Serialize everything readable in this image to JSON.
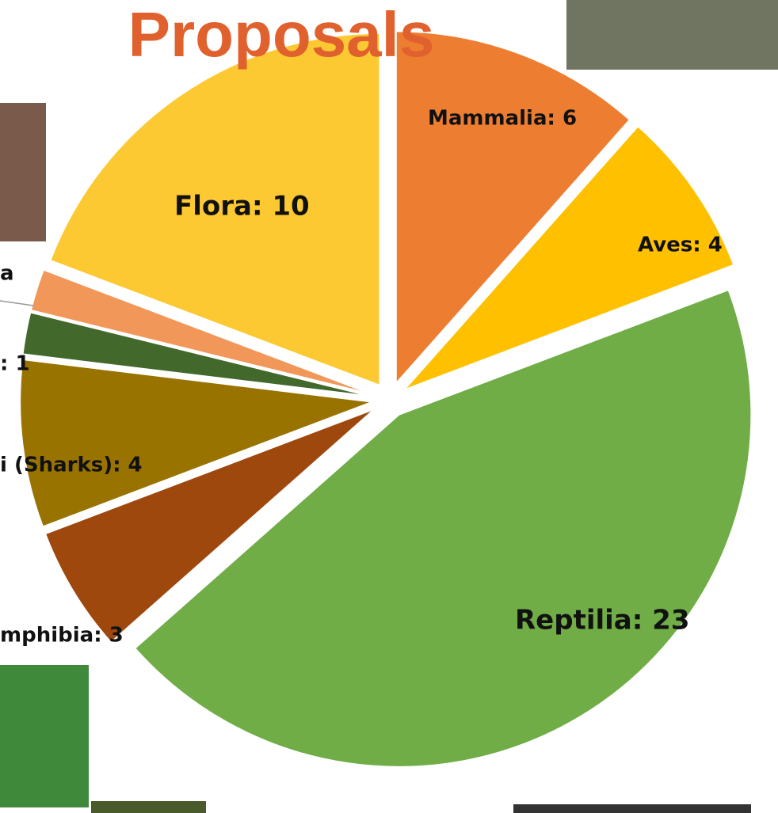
{
  "chart_data": {
    "type": "pie",
    "title": "Proposals",
    "values": [
      6,
      4,
      23,
      3,
      4,
      1,
      1,
      10
    ],
    "value_labels": [
      "Mammalia: 6",
      "Aves: 4",
      "Reptilia: 23",
      "mphibia: 3",
      "i (Sharks): 4",
      ": 1",
      "a",
      "Flora: 10"
    ],
    "colors": [
      "#ed7d31",
      "#ffc000",
      "#70ad47",
      "#9e480e",
      "#997300",
      "#43682b",
      "#f1975a",
      "#fcc932"
    ]
  }
}
